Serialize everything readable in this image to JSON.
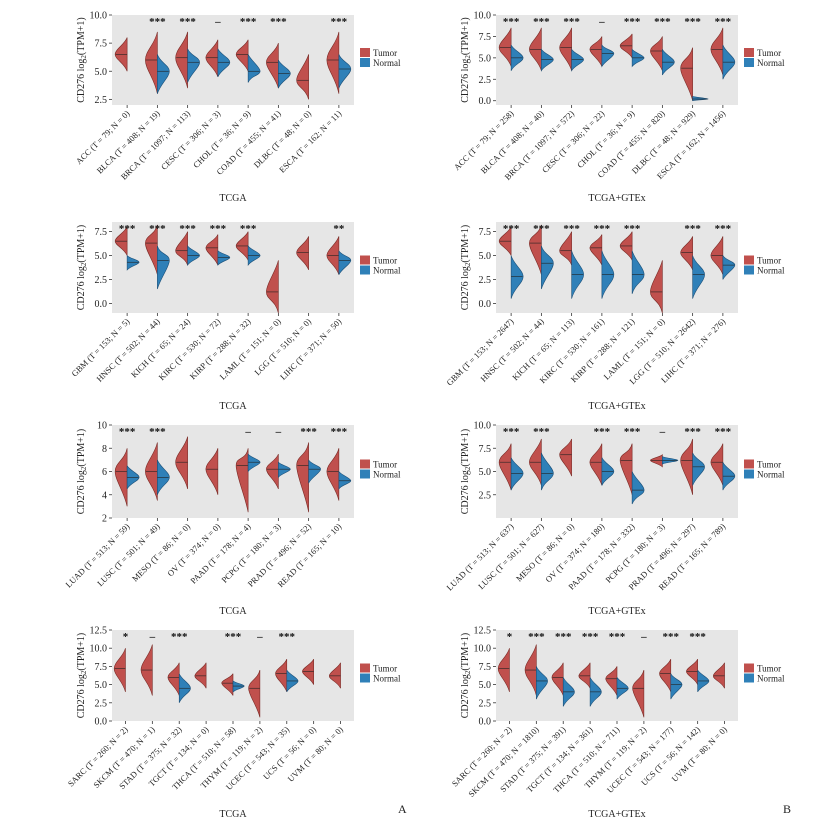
{
  "legend": {
    "tumor_label": "Tumor",
    "normal_label": "Normal"
  },
  "colors": {
    "tumor": "#c0504d",
    "normal": "#2f80b8",
    "bg": "#e6e6e6",
    "tumor_stroke": "#7a2a25",
    "normal_stroke": "#1a4f78"
  },
  "panel_labels": [
    "A",
    "B"
  ],
  "chart_data": [
    {
      "type": "split_violin",
      "xlabel": "TCGA",
      "ylim": [
        2,
        10
      ],
      "yticks": [
        "2.5",
        "5.0",
        "7.5",
        "10.0"
      ],
      "ytick_values": [
        2.5,
        5.0,
        7.5,
        10.0
      ],
      "categories": [
        "ACC (T = 79; N = 0)",
        "BLCA (T = 408; N = 19)",
        "BRCA (T = 1097; N = 113)",
        "CESC (T = 306; N = 3)",
        "CHOL (T = 36; N = 9)",
        "COAD (T = 455; N = 41)",
        "DLBC (T = 48; N = 0)",
        "ESCA (T = 162; N = 11)"
      ],
      "significance": [
        "",
        "***",
        "***",
        "–",
        "***",
        "***",
        "",
        "***"
      ],
      "tumor_median": [
        6.5,
        6.0,
        6.2,
        6.2,
        6.5,
        5.8,
        4.2,
        6.0
      ],
      "tumor_range": [
        [
          5.0,
          8.0
        ],
        [
          3.0,
          8.5
        ],
        [
          3.5,
          8.5
        ],
        [
          4.5,
          7.8
        ],
        [
          5.0,
          7.8
        ],
        [
          3.5,
          7.5
        ],
        [
          2.5,
          6.5
        ],
        [
          3.0,
          8.5
        ]
      ],
      "normal_median": [
        null,
        5.0,
        5.8,
        5.8,
        5.0,
        4.8,
        null,
        5.2
      ],
      "normal_range": [
        null,
        [
          3.0,
          6.5
        ],
        [
          4.0,
          7.0
        ],
        [
          4.5,
          7.0
        ],
        [
          4.0,
          6.5
        ],
        [
          3.5,
          6.0
        ],
        null,
        [
          3.5,
          6.5
        ]
      ]
    },
    {
      "type": "split_violin",
      "xlabel": "TCGA+GTEx",
      "ylim": [
        -0.5,
        10
      ],
      "yticks": [
        "0.0",
        "2.5",
        "5.0",
        "7.5",
        "10.0"
      ],
      "ytick_values": [
        0,
        2.5,
        5.0,
        7.5,
        10.0
      ],
      "categories": [
        "ACC (T = 79; N = 258)",
        "BLCA (T = 408; N = 40)",
        "BRCA (T = 1097; N = 572)",
        "CESC (T = 306; N = 22)",
        "CHOL (T = 36; N = 9)",
        "COAD (T = 455; N = 820)",
        "DLBC (T = 48; N = 929)",
        "ESCA (T = 162; N = 1456)"
      ],
      "significance": [
        "***",
        "***",
        "***",
        "–",
        "***",
        "***",
        "***",
        "***"
      ],
      "tumor_median": [
        6.2,
        6.0,
        6.2,
        6.0,
        6.4,
        5.8,
        3.8,
        6.0
      ],
      "tumor_range": [
        [
          4.0,
          8.5
        ],
        [
          3.5,
          8.5
        ],
        [
          3.5,
          8.5
        ],
        [
          4.0,
          7.5
        ],
        [
          5.0,
          7.8
        ],
        [
          3.5,
          7.5
        ],
        [
          0.0,
          6.2
        ],
        [
          3.0,
          8.5
        ]
      ],
      "normal_median": [
        5.0,
        4.8,
        4.8,
        5.5,
        5.0,
        4.5,
        0.2,
        4.5
      ],
      "normal_range": [
        [
          3.5,
          6.5
        ],
        [
          3.5,
          6.0
        ],
        [
          3.5,
          6.0
        ],
        [
          4.0,
          6.5
        ],
        [
          4.0,
          6.0
        ],
        [
          3.0,
          6.0
        ],
        [
          0.0,
          0.5
        ],
        [
          2.5,
          6.5
        ]
      ]
    },
    {
      "type": "split_violin",
      "xlabel": "TCGA",
      "ylim": [
        -1,
        8.5
      ],
      "yticks": [
        "0.0",
        "2.5",
        "5.0",
        "7.5"
      ],
      "ytick_values": [
        0,
        2.5,
        5.0,
        7.5
      ],
      "categories": [
        "GBM (T = 153; N = 5)",
        "HNSC (T = 502; N = 44)",
        "KICH (T = 65; N = 24)",
        "KIRC (T = 530; N = 72)",
        "KIRP (T = 288; N = 32)",
        "LAML (T = 151; N = 0)",
        "LGG (T = 510; N = 0)",
        "LIHC (T = 371; N = 50)"
      ],
      "significance": [
        "***",
        "***",
        "***",
        "***",
        "***",
        "",
        "",
        "**"
      ],
      "tumor_median": [
        6.5,
        6.3,
        5.5,
        5.8,
        6.0,
        1.2,
        5.3,
        5.0
      ],
      "tumor_range": [
        [
          5.0,
          8.0
        ],
        [
          3.0,
          8.2
        ],
        [
          4.0,
          7.5
        ],
        [
          4.0,
          7.2
        ],
        [
          4.5,
          7.5
        ],
        [
          -1.0,
          4.5
        ],
        [
          3.5,
          7.0
        ],
        [
          3.0,
          7.0
        ]
      ],
      "normal_median": [
        4.3,
        4.5,
        5.0,
        4.8,
        5.0,
        null,
        null,
        4.5
      ],
      "normal_range": [
        [
          3.5,
          5.0
        ],
        [
          1.5,
          6.0
        ],
        [
          4.0,
          6.0
        ],
        [
          4.0,
          5.5
        ],
        [
          4.0,
          6.0
        ],
        null,
        null,
        [
          3.0,
          5.5
        ]
      ]
    },
    {
      "type": "split_violin",
      "xlabel": "TCGA+GTEx",
      "ylim": [
        -1,
        8.5
      ],
      "yticks": [
        "0.0",
        "2.5",
        "5.0",
        "7.5"
      ],
      "ytick_values": [
        0,
        2.5,
        5.0,
        7.5
      ],
      "categories": [
        "GBM (T = 153; N = 2647)",
        "HNSC (T = 502; N = 44)",
        "KICH (T = 65; N = 113)",
        "KIRC (T = 530; N = 161)",
        "KIRP (T = 288; N = 121)",
        "LAML (T = 151; N = 0)",
        "LGG (T = 510; N = 2642)",
        "LIHC (T = 371; N = 276)"
      ],
      "significance": [
        "***",
        "***",
        "***",
        "***",
        "***",
        "",
        "***",
        "***"
      ],
      "tumor_median": [
        6.5,
        6.3,
        5.5,
        5.8,
        6.0,
        1.2,
        5.3,
        5.0
      ],
      "tumor_range": [
        [
          5.0,
          8.0
        ],
        [
          3.0,
          8.2
        ],
        [
          4.0,
          7.5
        ],
        [
          4.0,
          7.2
        ],
        [
          4.5,
          7.5
        ],
        [
          -1.0,
          4.5
        ],
        [
          3.5,
          7.0
        ],
        [
          3.0,
          7.0
        ]
      ],
      "normal_median": [
        2.8,
        4.2,
        3.0,
        3.0,
        3.0,
        null,
        3.0,
        4.0
      ],
      "normal_range": [
        [
          0.5,
          5.0
        ],
        [
          1.5,
          6.0
        ],
        [
          0.5,
          5.5
        ],
        [
          0.5,
          5.5
        ],
        [
          1.0,
          5.5
        ],
        null,
        [
          0.5,
          5.0
        ],
        [
          2.5,
          5.0
        ]
      ]
    },
    {
      "type": "split_violin",
      "xlabel": "TCGA",
      "ylim": [
        2,
        10
      ],
      "yticks": [
        "2",
        "4",
        "6",
        "8",
        "10"
      ],
      "ytick_values": [
        2,
        4,
        6,
        8,
        10
      ],
      "categories": [
        "LUAD (T = 513; N = 59)",
        "LUSC (T = 501; N = 49)",
        "MESO (T = 86; N = 0)",
        "OV (T = 374; N = 0)",
        "PAAD (T = 178; N = 4)",
        "PCPG (T = 180; N = 3)",
        "PRAD (T = 496; N = 52)",
        "READ (T = 165; N = 10)"
      ],
      "significance": [
        "***",
        "***",
        "",
        "",
        "–",
        "–",
        "***",
        "***"
      ],
      "tumor_median": [
        6.0,
        6.0,
        6.8,
        6.2,
        6.5,
        6.2,
        6.5,
        6.0
      ],
      "tumor_range": [
        [
          3.0,
          8.0
        ],
        [
          3.5,
          8.5
        ],
        [
          4.5,
          9.0
        ],
        [
          4.0,
          8.0
        ],
        [
          2.5,
          8.0
        ],
        [
          4.5,
          7.5
        ],
        [
          2.5,
          8.5
        ],
        [
          3.5,
          8.0
        ]
      ],
      "normal_median": [
        5.5,
        5.5,
        null,
        null,
        6.8,
        6.2,
        6.2,
        5.2
      ],
      "normal_range": [
        [
          4.5,
          6.5
        ],
        [
          4.0,
          7.0
        ],
        null,
        null,
        [
          6.0,
          7.5
        ],
        [
          5.5,
          6.8
        ],
        [
          5.0,
          7.0
        ],
        [
          4.5,
          6.0
        ]
      ]
    },
    {
      "type": "split_violin",
      "xlabel": "TCGA+GTEx",
      "ylim": [
        0,
        10
      ],
      "yticks": [
        "2.5",
        "5.0",
        "7.5",
        "10.0"
      ],
      "ytick_values": [
        2.5,
        5.0,
        7.5,
        10.0
      ],
      "categories": [
        "LUAD (T = 513; N = 637)",
        "LUSC (T = 501; N = 627)",
        "MESO (T = 86; N = 0)",
        "OV (T = 374; N = 180)",
        "PAAD (T = 178; N = 332)",
        "PCPG (T = 180; N = 3)",
        "PRAD (T = 496; N = 297)",
        "READ (T = 165; N = 789)"
      ],
      "significance": [
        "***",
        "***",
        "",
        "***",
        "***",
        "–",
        "***",
        "***"
      ],
      "tumor_median": [
        6.0,
        6.0,
        6.8,
        6.0,
        6.2,
        6.2,
        6.2,
        6.0
      ],
      "tumor_range": [
        [
          3.0,
          8.0
        ],
        [
          3.5,
          8.5
        ],
        [
          4.5,
          8.5
        ],
        [
          3.5,
          8.0
        ],
        [
          2.5,
          8.0
        ],
        [
          5.5,
          6.8
        ],
        [
          2.5,
          8.5
        ],
        [
          3.5,
          8.0
        ]
      ],
      "normal_median": [
        4.8,
        4.8,
        null,
        5.0,
        3.0,
        6.2,
        5.5,
        4.5
      ],
      "normal_range": [
        [
          3.0,
          6.5
        ],
        [
          3.0,
          7.0
        ],
        null,
        [
          3.5,
          6.5
        ],
        [
          1.5,
          5.0
        ],
        [
          5.8,
          6.6
        ],
        [
          3.5,
          7.0
        ],
        [
          3.0,
          6.0
        ]
      ]
    },
    {
      "type": "split_violin",
      "xlabel": "TCGA",
      "ylim": [
        0,
        12.5
      ],
      "yticks": [
        "0.0",
        "2.5",
        "5.0",
        "7.5",
        "10.0",
        "12.5"
      ],
      "ytick_values": [
        0,
        2.5,
        5.0,
        7.5,
        10.0,
        12.5
      ],
      "categories": [
        "SARC (T = 260; N = 2)",
        "SKCM (T = 470; N = 1)",
        "STAD (T = 375; N = 32)",
        "TGCT (T = 134; N = 0)",
        "THCA (T = 510; N = 58)",
        "THYM (T = 119; N = 2)",
        "UCEC (T = 543; N = 35)",
        "UCS (T = 56; N = 0)",
        "UVM (T = 80; N = 0)"
      ],
      "significance": [
        "*",
        "–",
        "***",
        "",
        "***",
        "–",
        "***",
        "",
        ""
      ],
      "tumor_median": [
        7.2,
        7.0,
        6.0,
        6.2,
        5.2,
        4.5,
        6.5,
        6.8,
        6.2
      ],
      "tumor_range": [
        [
          4.0,
          10.0
        ],
        [
          3.5,
          10.5
        ],
        [
          3.5,
          8.0
        ],
        [
          4.5,
          8.0
        ],
        [
          3.5,
          6.5
        ],
        [
          0.5,
          7.0
        ],
        [
          4.0,
          8.5
        ],
        [
          5.0,
          8.5
        ],
        [
          4.5,
          8.0
        ]
      ],
      "normal_median": [
        null,
        null,
        4.5,
        null,
        4.8,
        null,
        5.5,
        null,
        null
      ],
      "normal_range": [
        null,
        null,
        [
          2.5,
          6.5
        ],
        null,
        [
          4.0,
          5.5
        ],
        null,
        [
          4.0,
          7.0
        ],
        null,
        null
      ]
    },
    {
      "type": "split_violin",
      "xlabel": "TCGA+GTEx",
      "ylim": [
        0,
        12.5
      ],
      "yticks": [
        "0.0",
        "2.5",
        "5.0",
        "7.5",
        "10.0",
        "12.5"
      ],
      "ytick_values": [
        0,
        2.5,
        5.0,
        7.5,
        10.0,
        12.5
      ],
      "categories": [
        "SARC (T = 260; N = 2)",
        "SKCM (T = 470; N = 1810)",
        "STAD (T = 375; N = 391)",
        "TGCT (T = 134; N = 361)",
        "THCA (T = 510; N = 711)",
        "THYM (T = 119; N = 2)",
        "UCEC (T = 543; N = 177)",
        "UCS (T = 56; N = 142)",
        "UVM (T = 80; N = 0)"
      ],
      "significance": [
        "*",
        "***",
        "***",
        "***",
        "***",
        "–",
        "***",
        "***",
        ""
      ],
      "tumor_median": [
        7.2,
        7.0,
        6.0,
        6.2,
        5.8,
        4.5,
        6.5,
        6.8,
        6.2
      ],
      "tumor_range": [
        [
          4.0,
          10.0
        ],
        [
          3.5,
          10.5
        ],
        [
          3.5,
          8.0
        ],
        [
          4.5,
          8.0
        ],
        [
          3.5,
          7.5
        ],
        [
          0.5,
          7.0
        ],
        [
          4.0,
          8.5
        ],
        [
          5.0,
          8.5
        ],
        [
          4.5,
          8.0
        ]
      ],
      "normal_median": [
        null,
        5.5,
        4.0,
        4.0,
        4.5,
        null,
        5.0,
        5.5,
        null
      ],
      "normal_range": [
        null,
        [
          3.0,
          7.5
        ],
        [
          2.0,
          6.0
        ],
        [
          2.0,
          6.0
        ],
        [
          3.0,
          6.0
        ],
        null,
        [
          3.0,
          6.5
        ],
        [
          4.0,
          7.0
        ],
        null
      ]
    }
  ]
}
